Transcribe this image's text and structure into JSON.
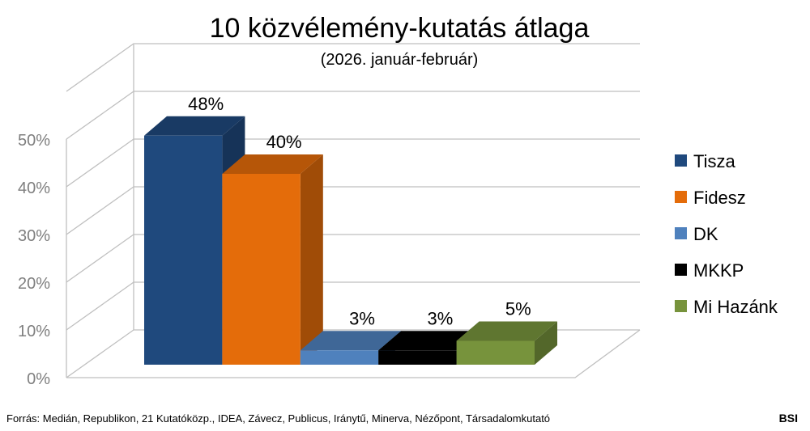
{
  "chart_data": {
    "type": "bar",
    "title": "10 közvélemény-kutatás átlaga",
    "subtitle": "(2026. január-február)",
    "categories": [
      "Tisza",
      "Fidesz",
      "DK",
      "MKKP",
      "Mi Hazánk"
    ],
    "values": [
      48,
      40,
      3,
      3,
      5
    ],
    "data_labels": [
      "48%",
      "40%",
      "3%",
      "3%",
      "5%"
    ],
    "colors": [
      "#1f497d",
      "#e46c0a",
      "#4f81bd",
      "#000000",
      "#77933c"
    ],
    "ylim": [
      0,
      50
    ],
    "y_ticks": [
      "0%",
      "10%",
      "20%",
      "30%",
      "40%",
      "50%"
    ],
    "grid": true,
    "style": "3d",
    "legend_position": "right",
    "legend": [
      "Tisza",
      "Fidesz",
      "DK",
      "MKKP",
      "Mi Hazánk"
    ]
  },
  "footer": {
    "source": "Forrás: Medián, Republikon, 21 Kutatóközp., IDEA, Závecz, Publicus, Iránytű, Minerva, Nézőpont, Társadalomkutató",
    "brand": "BSI"
  }
}
